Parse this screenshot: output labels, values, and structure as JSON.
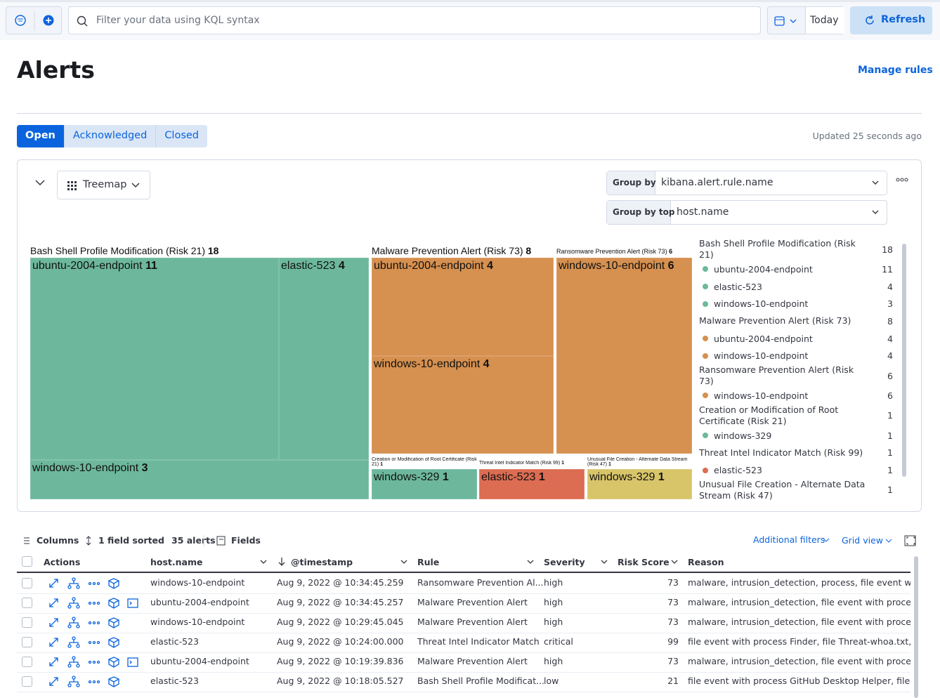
{
  "top_bar": {
    "search_placeholder": "Filter your data using KQL syntax",
    "date": "Today",
    "refresh": "Refresh"
  },
  "header": {
    "title": "Alerts",
    "manage_rules": "Manage rules"
  },
  "tabs": {
    "items": [
      "Open",
      "Acknowledged",
      "Closed"
    ],
    "updated": "Updated 25 seconds ago"
  },
  "panel": {
    "view": "Treemap",
    "group_by_label": "Group by",
    "group_by_value": "kibana.alert.rule.name",
    "group_by_top_label": "Group by top",
    "group_by_top_value": "host.name"
  },
  "treemap": {
    "groups": [
      {
        "name": "Bash Shell Profile Modification (Risk 21)",
        "count": 18,
        "color": "#6db89d",
        "hosts": [
          {
            "name": "ubuntu-2004-endpoint",
            "count": 11
          },
          {
            "name": "elastic-523",
            "count": 4
          },
          {
            "name": "windows-10-endpoint",
            "count": 3
          }
        ]
      },
      {
        "name": "Malware Prevention Alert (Risk 73)",
        "count": 8,
        "color": "#d6904f",
        "hosts": [
          {
            "name": "ubuntu-2004-endpoint",
            "count": 4
          },
          {
            "name": "windows-10-endpoint",
            "count": 4
          }
        ]
      },
      {
        "name": "Ransomware Prevention Alert (Risk 73)",
        "count": 6,
        "color": "#d6904f",
        "hosts": [
          {
            "name": "windows-10-endpoint",
            "count": 6
          }
        ]
      },
      {
        "name": "Creation or Modification of Root Certificate (Risk 21)",
        "count": 1,
        "color": "#6db89d",
        "hosts": [
          {
            "name": "windows-329",
            "count": 1
          }
        ]
      },
      {
        "name": "Threat Intel Indicator Match (Risk 99)",
        "count": 1,
        "color": "#dc6c52",
        "hosts": [
          {
            "name": "elastic-523",
            "count": 1
          }
        ]
      },
      {
        "name": "Unusual File Creation - Alternate Data Stream (Risk 47)",
        "count": 1,
        "color": "#d8c56a",
        "hosts": [
          {
            "name": "windows-329",
            "count": 1
          }
        ]
      }
    ]
  },
  "table": {
    "columns_button": "Columns",
    "sorted": "1 field sorted",
    "count": "35 alerts",
    "fields": "Fields",
    "additional_filters": "Additional filters",
    "grid_view": "Grid view",
    "headers": [
      "Actions",
      "host.name",
      "@timestamp",
      "Rule",
      "Severity",
      "Risk Score",
      "Reason"
    ],
    "rows": [
      [
        "windows-10-endpoint",
        "Aug 9, 2022 @ 10:34:45.259",
        "Ransomware Prevention Al...",
        "high",
        73,
        "malware, intrusion_detection, process, file event with pr"
      ],
      [
        "ubuntu-2004-endpoint",
        "Aug 9, 2022 @ 10:34:45.257",
        "Malware Prevention Alert",
        "high",
        73,
        "malware, intrusion_detection, file event with process pyt"
      ],
      [
        "windows-10-endpoint",
        "Aug 9, 2022 @ 10:29:45.045",
        "Malware Prevention Alert",
        "high",
        73,
        "malware, intrusion_detection, file event with process pyt"
      ],
      [
        "elastic-523",
        "Aug 9, 2022 @ 10:24:00.000",
        "Threat Intel Indicator Match",
        "critical",
        99,
        "file event with process Finder, file Threat-whoa.txt, by jo"
      ],
      [
        "ubuntu-2004-endpoint",
        "Aug 9, 2022 @ 10:19:39.836",
        "Malware Prevention Alert",
        "high",
        73,
        "malware, intrusion_detection, file event with process pyt"
      ],
      [
        "elastic-523",
        "Aug 9, 2022 @ 10:18:05.527",
        "Bash Shell Profile Modificat...",
        "low",
        21,
        "file event with process GitHub Desktop Helper, file .com"
      ]
    ]
  }
}
